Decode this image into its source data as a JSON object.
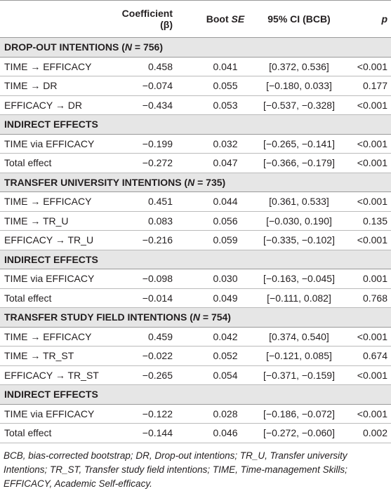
{
  "table": {
    "columns": [
      [
        {
          "text": "Coefficient (β)"
        }
      ],
      [
        {
          "text": "Boot "
        },
        {
          "text": "SE",
          "italic": true
        }
      ],
      [
        {
          "text": "95% CI (BCB)"
        }
      ],
      [
        {
          "text": "p",
          "italic": true
        }
      ]
    ],
    "sections": [
      {
        "title": [
          {
            "text": "DROP-OUT INTENTIONS ("
          },
          {
            "text": "N",
            "italic": true
          },
          {
            "text": " = 756)"
          }
        ],
        "rows": [
          [
            "TIME →  EFFICACY",
            "0.458",
            "0.041",
            "[0.372, 0.536]",
            "<0.001"
          ],
          [
            "TIME →  DR",
            "−0.074",
            "0.055",
            "[−0.180, 0.033]",
            "0.177"
          ],
          [
            "EFFICACY →  DR",
            "−0.434",
            "0.053",
            "[−0.537, −0.328]",
            "<0.001"
          ]
        ]
      },
      {
        "title": [
          {
            "text": "INDIRECT EFFECTS"
          }
        ],
        "rows": [
          [
            "TIME via EFFICACY",
            "−0.199",
            "0.032",
            "[−0.265, −0.141]",
            "<0.001"
          ],
          [
            "Total effect",
            "−0.272",
            "0.047",
            "[−0.366, −0.179]",
            "<0.001"
          ]
        ]
      },
      {
        "title": [
          {
            "text": "TRANSFER UNIVERSITY INTENTIONS ("
          },
          {
            "text": "N",
            "italic": true
          },
          {
            "text": " = 735)"
          }
        ],
        "rows": [
          [
            "TIME →  EFFICACY",
            "0.451",
            "0.044",
            "[0.361, 0.533]",
            "<0.001"
          ],
          [
            "TIME →  TR_U",
            "0.083",
            "0.056",
            "[−0.030, 0.190]",
            "0.135"
          ],
          [
            "EFFICACY →  TR_U",
            "−0.216",
            "0.059",
            "[−0.335, −0.102]",
            "<0.001"
          ]
        ]
      },
      {
        "title": [
          {
            "text": "INDIRECT EFFECTS"
          }
        ],
        "rows": [
          [
            "TIME via EFFICACY",
            "−0.098",
            "0.030",
            "[−0.163, −0.045]",
            "0.001"
          ],
          [
            "Total effect",
            "−0.014",
            "0.049",
            "[−0.111, 0.082]",
            "0.768"
          ]
        ]
      },
      {
        "title": [
          {
            "text": "TRANSFER STUDY FIELD INTENTIONS ("
          },
          {
            "text": "N",
            "italic": true
          },
          {
            "text": " = 754)"
          }
        ],
        "rows": [
          [
            "TIME →  EFFICACY",
            "0.459",
            "0.042",
            "[0.374, 0.540]",
            "<0.001"
          ],
          [
            "TIME →  TR_ST",
            "−0.022",
            "0.052",
            "[−0.121, 0.085]",
            "0.674"
          ],
          [
            "EFFICACY →  TR_ST",
            "−0.265",
            "0.054",
            "[−0.371, −0.159]",
            "<0.001"
          ]
        ]
      },
      {
        "title": [
          {
            "text": "INDIRECT EFFECTS"
          }
        ],
        "rows": [
          [
            "TIME via EFFICACY",
            "−0.122",
            "0.028",
            "[−0.186, −0.072]",
            "<0.001"
          ],
          [
            "Total effect",
            "−0.144",
            "0.046",
            "[−0.272, −0.060]",
            "0.002"
          ]
        ]
      }
    ]
  },
  "footnote": "BCB, bias-corrected bootstrap; DR, Drop-out intentions; TR_U, Transfer university Intentions; TR_ST, Transfer study field intentions; TIME, Time-management Skills; EFFICACY, Academic Self-efficacy."
}
